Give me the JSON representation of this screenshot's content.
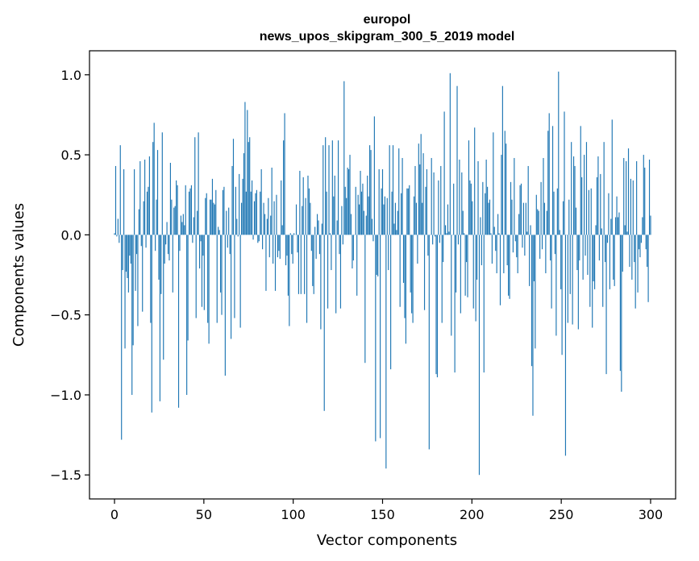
{
  "chart_data": {
    "type": "bar",
    "title": "europol",
    "subtitle": "news_upos_skipgram_300_5_2019 model",
    "xlabel": "Vector components",
    "ylabel": "Components values",
    "xlim": [
      -14,
      314
    ],
    "ylim": [
      -1.65,
      1.15
    ],
    "xticks": [
      0,
      50,
      100,
      150,
      200,
      250,
      300
    ],
    "xtick_labels": [
      "0",
      "50",
      "100",
      "150",
      "200",
      "250",
      "300"
    ],
    "yticks": [
      -1.5,
      -1.0,
      -0.5,
      0.0,
      0.5,
      1.0
    ],
    "ytick_labels": [
      "−1.5",
      "−1.0",
      "−0.5",
      "0.0",
      "0.5",
      "1.0"
    ],
    "bar_color": "#1f77b4",
    "values": [
      0.01,
      0.43,
      -0.01,
      0.1,
      -0.05,
      0.56,
      -1.28,
      -0.22,
      0.41,
      -0.71,
      -0.23,
      -0.27,
      -0.36,
      -0.13,
      -0.18,
      -1.0,
      -0.69,
      0.41,
      -0.35,
      -0.12,
      -0.57,
      0.16,
      0.46,
      -0.07,
      -0.48,
      0.21,
      0.47,
      -0.08,
      0.27,
      0.3,
      0.49,
      -0.55,
      -1.11,
      0.58,
      0.7,
      -0.1,
      0.22,
      0.53,
      -0.28,
      -1.04,
      -0.37,
      0.64,
      -0.78,
      -0.18,
      -0.06,
      0.08,
      -0.12,
      -0.16,
      0.45,
      0.22,
      -0.36,
      0.17,
      0.18,
      0.34,
      0.31,
      -1.08,
      -0.1,
      0.12,
      0.08,
      0.13,
      0.06,
      0.31,
      -1.0,
      -0.66,
      0.27,
      0.29,
      0.31,
      -0.05,
      0.11,
      0.61,
      -0.52,
      0.15,
      0.64,
      -0.21,
      -0.04,
      -0.45,
      -0.13,
      -0.47,
      0.23,
      0.26,
      -0.55,
      -0.68,
      0.22,
      0.22,
      0.35,
      0.2,
      0.19,
      0.28,
      -0.55,
      0.05,
      0.03,
      -0.36,
      -0.5,
      0.28,
      0.3,
      -0.88,
      0.15,
      -0.08,
      0.17,
      -0.12,
      -0.65,
      0.43,
      0.6,
      -0.52,
      0.3,
      0.1,
      -0.01,
      0.38,
      -0.58,
      0.2,
      0.35,
      0.51,
      0.83,
      0.27,
      0.78,
      0.58,
      0.61,
      0.27,
      0.34,
      -0.03,
      0.21,
      0.26,
      0.28,
      -0.05,
      -0.04,
      0.27,
      0.41,
      -0.09,
      0.2,
      0.13,
      -0.35,
      0.1,
      0.23,
      -0.14,
      0.12,
      0.42,
      -0.18,
      0.21,
      -0.35,
      0.25,
      -0.14,
      -0.1,
      -0.15,
      0.34,
      0.06,
      0.59,
      0.76,
      -0.19,
      -0.13,
      -0.38,
      -0.57,
      0.01,
      -0.12,
      -0.18,
      0.01,
      0.0,
      0.19,
      -0.11,
      -0.37,
      0.4,
      -0.37,
      0.18,
      0.36,
      -0.37,
      0.23,
      -0.55,
      0.37,
      0.29,
      0.2,
      -0.1,
      -0.32,
      -0.37,
      0.05,
      -0.15,
      0.13,
      0.09,
      -0.12,
      -0.59,
      0.07,
      0.56,
      -1.1,
      0.61,
      0.27,
      -0.46,
      0.56,
      0.01,
      -0.22,
      0.59,
      0.24,
      0.37,
      -0.49,
      0.09,
      0.59,
      -0.12,
      -0.46,
      0.18,
      -0.06,
      0.96,
      0.3,
      0.23,
      0.42,
      0.41,
      0.5,
      0.13,
      -0.21,
      -0.16,
      0.0,
      0.3,
      -0.38,
      0.25,
      0.19,
      0.4,
      0.27,
      0.32,
      0.15,
      -0.8,
      0.12,
      0.37,
      0.24,
      0.56,
      0.53,
      0.1,
      -0.04,
      0.74,
      -1.29,
      -0.25,
      -0.26,
      0.41,
      -1.27,
      0.29,
      0.41,
      0.19,
      0.24,
      -1.46,
      0.23,
      -0.22,
      0.56,
      -0.84,
      0.27,
      0.56,
      0.07,
      0.2,
      0.03,
      0.15,
      0.54,
      -0.45,
      0.26,
      0.48,
      -0.3,
      -0.52,
      -0.68,
      0.29,
      0.29,
      0.31,
      -0.36,
      -0.49,
      -0.55,
      0.24,
      0.43,
      0.2,
      -0.18,
      0.57,
      0.44,
      0.63,
      0.2,
      0.51,
      -0.47,
      0.3,
      0.41,
      -0.13,
      -1.34,
      0.0,
      0.48,
      -0.06,
      0.39,
      -0.01,
      -0.87,
      -0.89,
      0.34,
      -0.05,
      0.43,
      -0.55,
      -0.17,
      0.77,
      0.06,
      0.01,
      0.19,
      0.02,
      1.01,
      -0.63,
      0.0,
      0.32,
      -0.86,
      -0.36,
      0.93,
      -0.06,
      0.47,
      -0.49,
      0.39,
      0.15,
      0.01,
      -0.38,
      -0.17,
      -0.39,
      0.59,
      0.34,
      0.32,
      0.21,
      -0.46,
      0.67,
      -0.54,
      -0.28,
      0.46,
      -1.5,
      0.11,
      -0.19,
      0.33,
      -0.86,
      0.26,
      0.47,
      0.3,
      0.2,
      0.22,
      0.01,
      -0.18,
      0.64,
      0.05,
      -0.1,
      -0.24,
      0.13,
      0.01,
      -0.44,
      0.5,
      0.93,
      -0.24,
      0.65,
      0.57,
      -0.19,
      -0.38,
      -0.4,
      0.33,
      0.22,
      -0.11,
      0.48,
      -0.04,
      -0.14,
      -0.24,
      0.13,
      0.31,
      0.32,
      -0.08,
      0.2,
      -0.13,
      0.2,
      0.02,
      0.43,
      -0.32,
      0.06,
      -0.82,
      -1.13,
      -0.29,
      -0.71,
      0.25,
      0.16,
      0.15,
      -0.15,
      0.33,
      -0.09,
      0.48,
      0.2,
      -0.24,
      0.15,
      0.65,
      0.76,
      -0.16,
      -0.46,
      0.68,
      0.27,
      -0.12,
      -0.63,
      0.29,
      1.02,
      0.03,
      -0.34,
      -0.75,
      0.21,
      0.77,
      -1.38,
      0.0,
      -0.55,
      0.22,
      -0.37,
      0.58,
      -0.56,
      0.49,
      0.43,
      0.17,
      -0.22,
      -0.59,
      -0.16,
      0.68,
      0.36,
      -0.28,
      0.5,
      -0.13,
      0.58,
      -0.25,
      0.28,
      -0.45,
      0.29,
      -0.58,
      -0.29,
      -0.34,
      0.06,
      0.36,
      0.49,
      -0.16,
      0.38,
      0.04,
      -0.45,
      0.58,
      -0.17,
      -0.87,
      -0.05,
      0.26,
      -0.34,
      0.1,
      0.72,
      -0.28,
      -0.32,
      0.11,
      0.24,
      0.11,
      0.14,
      -0.85,
      -0.98,
      -0.23,
      0.48,
      0.06,
      0.46,
      0.02,
      0.54,
      -0.2,
      0.35,
      -0.28,
      0.34,
      -0.17,
      -0.46,
      0.46,
      -0.36,
      -0.09,
      -0.14,
      -0.05,
      0.11,
      0.5,
      0.42,
      -0.09,
      -0.2,
      -0.42,
      0.47,
      0.12
    ]
  }
}
